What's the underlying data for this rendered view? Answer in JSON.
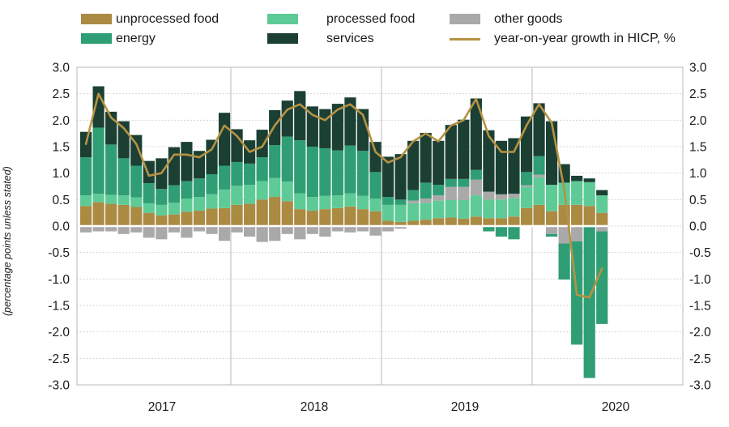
{
  "axis_title": "(percentage points unless stated)",
  "legend": {
    "items": [
      {
        "label": "unprocessed food",
        "color": "#ab8a42",
        "kind": "box"
      },
      {
        "label": "processed food",
        "color": "#5ecb97",
        "kind": "box"
      },
      {
        "label": "other goods",
        "color": "#a9a9a9",
        "kind": "box"
      },
      {
        "label": "energy",
        "color": "#2f9e74",
        "kind": "box"
      },
      {
        "label": "services",
        "color": "#1b4033",
        "kind": "box"
      },
      {
        "label": "year-on-year growth in HICP, %",
        "color": "#b69243",
        "kind": "line"
      }
    ]
  },
  "chart_data": {
    "type": "bar",
    "subtype": "stacked-bar-with-line",
    "title": "",
    "xlabel": "",
    "ylabel": "(percentage points unless stated)",
    "ylim": [
      -3.0,
      3.0
    ],
    "grid": "horizontal dashed every 0.5; solid vertical year separators",
    "legend_position": "top",
    "x_year_labels": [
      "2017",
      "2018",
      "2019",
      "2020"
    ],
    "y_ticks_left": [
      "3.0",
      "2.5",
      "2.0",
      "1.5",
      "1.0",
      "0.5",
      "0.0",
      "-0.5",
      "-1.0",
      "-1.5",
      "-2.0",
      "-2.5",
      "-3.0"
    ],
    "y_ticks_right": [
      "3.0",
      "2.5",
      "2.0",
      "1.5",
      "1.0",
      "0.5",
      "0.0",
      "-0.5",
      "-1.0",
      "-1.5",
      "-2.0",
      "-2.5",
      "-3.0"
    ],
    "y_tick_values": [
      3.0,
      2.5,
      2.0,
      1.5,
      1.0,
      0.5,
      0.0,
      -0.5,
      -1.0,
      -1.5,
      -2.0,
      -2.5,
      -3.0
    ],
    "months": [
      "2017-01",
      "2017-02",
      "2017-03",
      "2017-04",
      "2017-05",
      "2017-06",
      "2017-07",
      "2017-08",
      "2017-09",
      "2017-10",
      "2017-11",
      "2017-12",
      "2018-01",
      "2018-02",
      "2018-03",
      "2018-04",
      "2018-05",
      "2018-06",
      "2018-07",
      "2018-08",
      "2018-09",
      "2018-10",
      "2018-11",
      "2018-12",
      "2019-01",
      "2019-02",
      "2019-03",
      "2019-04",
      "2019-05",
      "2019-06",
      "2019-07",
      "2019-08",
      "2019-09",
      "2019-10",
      "2019-11",
      "2019-12",
      "2020-01",
      "2020-02",
      "2020-03",
      "2020-04",
      "2020-05",
      "2020-06"
    ],
    "series": [
      {
        "name": "unprocessed food",
        "color": "#ab8a42",
        "values": [
          0.38,
          0.45,
          0.42,
          0.4,
          0.36,
          0.25,
          0.2,
          0.22,
          0.27,
          0.29,
          0.33,
          0.34,
          0.4,
          0.42,
          0.5,
          0.55,
          0.47,
          0.32,
          0.29,
          0.32,
          0.34,
          0.37,
          0.32,
          0.28,
          0.1,
          0.08,
          0.1,
          0.12,
          0.15,
          0.16,
          0.14,
          0.18,
          0.15,
          0.15,
          0.18,
          0.34,
          0.4,
          0.28,
          0.4,
          0.4,
          0.38,
          0.25
        ]
      },
      {
        "name": "processed food",
        "color": "#5ecb97",
        "values": [
          0.2,
          0.16,
          0.17,
          0.18,
          0.18,
          0.18,
          0.2,
          0.22,
          0.25,
          0.26,
          0.27,
          0.35,
          0.36,
          0.36,
          0.35,
          0.36,
          0.37,
          0.3,
          0.26,
          0.25,
          0.24,
          0.25,
          0.25,
          0.24,
          0.3,
          0.32,
          0.33,
          0.32,
          0.33,
          0.33,
          0.35,
          0.4,
          0.35,
          0.35,
          0.35,
          0.4,
          0.52,
          0.5,
          0.42,
          0.45,
          0.45,
          0.33
        ]
      },
      {
        "name": "other goods",
        "color": "#a9a9a9",
        "values": [
          -0.12,
          -0.1,
          -0.1,
          -0.15,
          -0.12,
          -0.22,
          -0.25,
          -0.12,
          -0.22,
          -0.1,
          -0.15,
          -0.28,
          -0.12,
          -0.2,
          -0.3,
          -0.28,
          -0.15,
          -0.25,
          -0.15,
          -0.2,
          -0.1,
          -0.12,
          -0.1,
          -0.18,
          -0.1,
          -0.05,
          0.05,
          0.08,
          0.1,
          0.25,
          0.25,
          0.3,
          0.15,
          0.1,
          0.08,
          0.03,
          0.05,
          -0.15,
          -0.33,
          -0.29,
          -0.02,
          -0.1
        ]
      },
      {
        "name": "energy",
        "color": "#2f9e74",
        "values": [
          0.72,
          1.25,
          0.95,
          0.7,
          0.6,
          0.38,
          0.3,
          0.33,
          0.33,
          0.35,
          0.38,
          0.45,
          0.45,
          0.4,
          0.45,
          0.62,
          0.85,
          1.0,
          0.95,
          0.9,
          0.85,
          0.9,
          0.85,
          0.5,
          0.15,
          0.1,
          0.2,
          0.3,
          0.2,
          0.15,
          0.15,
          0.18,
          -0.1,
          -0.2,
          -0.25,
          0.25,
          0.35,
          -0.05,
          -0.68,
          -1.95,
          -2.85,
          -1.75
        ]
      },
      {
        "name": "services",
        "color": "#1b4033",
        "values": [
          0.48,
          0.78,
          0.62,
          0.7,
          0.58,
          0.42,
          0.58,
          0.72,
          0.74,
          0.52,
          0.65,
          1.0,
          0.62,
          0.44,
          0.52,
          0.66,
          0.68,
          0.93,
          0.76,
          0.74,
          0.88,
          0.91,
          0.79,
          0.57,
          0.76,
          0.86,
          0.93,
          0.94,
          0.83,
          1.02,
          1.12,
          1.35,
          1.16,
          1.01,
          1.05,
          1.05,
          1.0,
          1.2,
          0.35,
          0.1,
          0.07,
          0.1
        ]
      }
    ],
    "line": {
      "name": "year-on-year growth in HICP, %",
      "color": "#b69243",
      "values": [
        1.55,
        2.5,
        2.05,
        1.85,
        1.55,
        0.95,
        1.0,
        1.35,
        1.35,
        1.3,
        1.45,
        1.9,
        1.7,
        1.4,
        1.5,
        1.9,
        2.2,
        2.3,
        2.1,
        2.0,
        2.2,
        2.3,
        2.1,
        1.4,
        1.2,
        1.3,
        1.6,
        1.75,
        1.6,
        1.9,
        2.0,
        2.4,
        1.7,
        1.4,
        1.4,
        1.9,
        2.3,
        1.95,
        0.7,
        -1.3,
        -1.35,
        -0.8
      ]
    },
    "colors": {
      "grid": "#d6d6d6",
      "frame": "#c4c4c4",
      "zero_overlay": "#ffffff",
      "tick_text": "#1a1a1a"
    }
  }
}
